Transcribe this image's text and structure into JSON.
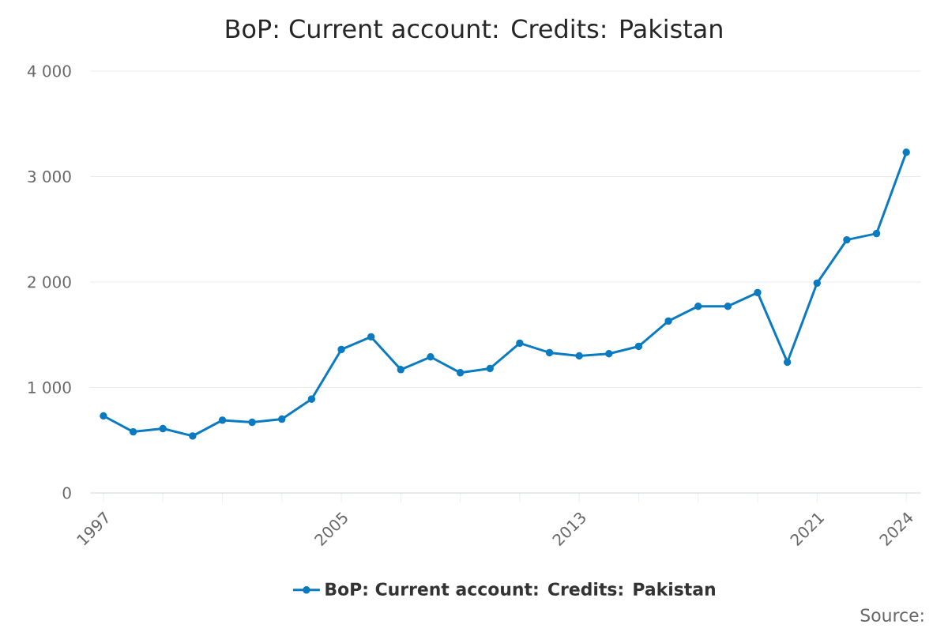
{
  "chart_data": {
    "type": "line",
    "title": "BoP: Current account: Credits: Pakistan",
    "x": [
      1997,
      1998,
      1999,
      2000,
      2001,
      2002,
      2003,
      2004,
      2005,
      2006,
      2007,
      2008,
      2009,
      2010,
      2011,
      2012,
      2013,
      2014,
      2015,
      2016,
      2017,
      2018,
      2019,
      2020,
      2021,
      2022,
      2023,
      2024
    ],
    "series": [
      {
        "name": "BoP: Current account: Credits: Pakistan",
        "color": "#0b7bc1",
        "values": [
          730,
          580,
          610,
          540,
          690,
          670,
          700,
          890,
          1360,
          1480,
          1170,
          1290,
          1140,
          1180,
          1420,
          1330,
          1300,
          1320,
          1390,
          1630,
          1770,
          1770,
          1900,
          1240,
          1990,
          2400,
          2460,
          3230
        ]
      }
    ],
    "xlim": [
      1996.55,
      2024.5
    ],
    "xticks": [
      {
        "value": 1997,
        "label": "1997"
      },
      {
        "value": 1999,
        "label": null
      },
      {
        "value": 2001,
        "label": null
      },
      {
        "value": 2003,
        "label": null
      },
      {
        "value": 2005,
        "label": "2005"
      },
      {
        "value": 2007,
        "label": null
      },
      {
        "value": 2009,
        "label": null
      },
      {
        "value": 2011,
        "label": null
      },
      {
        "value": 2013,
        "label": "2013"
      },
      {
        "value": 2015,
        "label": null
      },
      {
        "value": 2017,
        "label": null
      },
      {
        "value": 2019,
        "label": null
      },
      {
        "value": 2021,
        "label": "2021"
      },
      {
        "value": 2024,
        "label": "2024"
      }
    ],
    "ylim": [
      0,
      4000
    ],
    "yticks": [
      0,
      {
        "value": 1000,
        "label": "1 000"
      },
      {
        "value": 2000,
        "label": "2 000"
      },
      {
        "value": 3000,
        "label": "3 000"
      },
      {
        "value": 4000,
        "label": "4 000"
      }
    ],
    "grid": "y",
    "legend": "bottom",
    "marker": "circle",
    "line_style": "solid",
    "annotations": [
      "Source:"
    ]
  }
}
